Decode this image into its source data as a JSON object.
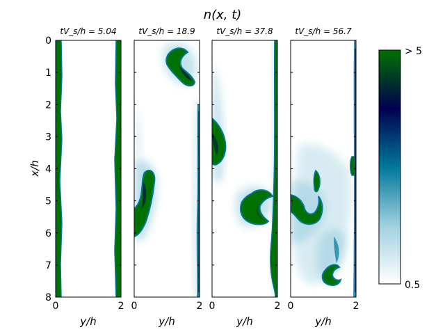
{
  "chart_data": {
    "type": "heatmap",
    "title": "n(x, t)",
    "xlabel": "y/h",
    "ylabel": "x/h",
    "xlim": [
      0,
      2
    ],
    "ylim": [
      8,
      0
    ],
    "xticks": [
      "0",
      "2"
    ],
    "yticks": [
      "0",
      "1",
      "2",
      "3",
      "4",
      "5",
      "6",
      "7",
      "8"
    ],
    "panels": [
      {
        "time_label": "tV_s/h = 5.04",
        "structures": [
          {
            "kind": "wall-layer",
            "y_center": 0.1,
            "x_range": [
              0,
              8
            ],
            "level": "> 5"
          },
          {
            "kind": "wall-layer",
            "y_center": 1.9,
            "x_range": [
              0,
              8
            ],
            "level": "> 5"
          }
        ]
      },
      {
        "time_label": "tV_s/h = 18.9",
        "structures": [
          {
            "kind": "plume",
            "y_center": 1.4,
            "x_center": 0.8,
            "level": "> 5"
          },
          {
            "kind": "plume",
            "y_center": 0.6,
            "x_center": 4.5,
            "level": "> 5"
          },
          {
            "kind": "wall-layer",
            "y_center": 1.95,
            "x_range": [
              1.5,
              8
            ],
            "level": "high"
          }
        ]
      },
      {
        "time_label": "tV_s/h = 37.8",
        "structures": [
          {
            "kind": "plume",
            "y_center": 0.2,
            "x_center": 3.2,
            "level": "> 5"
          },
          {
            "kind": "plume",
            "y_center": 1.4,
            "x_center": 5.2,
            "level": "> 5"
          },
          {
            "kind": "wall-layer",
            "y_center": 1.95,
            "x_range": [
              0,
              8
            ],
            "level": "high"
          }
        ]
      },
      {
        "time_label": "tV_s/h = 56.7",
        "structures": [
          {
            "kind": "plume",
            "y_center": 0.6,
            "x_center": 5.5,
            "level": "> 5"
          },
          {
            "kind": "plume",
            "y_center": 1.2,
            "x_center": 7.4,
            "level": "> 5"
          },
          {
            "kind": "plume",
            "y_center": 1.95,
            "x_center": 3.9,
            "level": "> 5"
          }
        ]
      }
    ],
    "colorbar": {
      "min_label": "0.5",
      "max_label": "> 5",
      "colors": [
        "#ffffff",
        "#7bb8cf",
        "#00789a",
        "#000050",
        "#007000"
      ]
    }
  }
}
